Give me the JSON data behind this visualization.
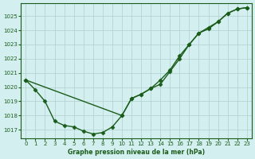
{
  "title": "Graphe pression niveau de la mer (hPa)",
  "background_color": "#d4efef",
  "grid_color": "#b0cece",
  "line_color": "#1a5c1a",
  "marker": "D",
  "marker_size": 2.5,
  "line_width": 1.0,
  "ylim": [
    1016.4,
    1025.9
  ],
  "yticks": [
    1017,
    1018,
    1019,
    1020,
    1021,
    1022,
    1023,
    1024,
    1025
  ],
  "xlim": [
    -0.5,
    23.5
  ],
  "xticks": [
    0,
    1,
    2,
    3,
    4,
    5,
    6,
    7,
    8,
    9,
    10,
    11,
    12,
    13,
    14,
    15,
    16,
    17,
    18,
    19,
    20,
    21,
    22,
    23
  ],
  "series1_x": [
    0,
    1,
    2,
    3,
    4,
    5,
    6,
    7,
    8,
    9,
    10,
    11,
    12,
    13,
    14,
    15,
    16,
    17,
    18,
    19,
    20,
    21,
    22,
    23
  ],
  "series1_y": [
    1020.5,
    1019.8,
    1019.0,
    1017.6,
    1017.3,
    1017.2,
    1016.9,
    1016.7,
    1016.8,
    1017.2,
    1018.0,
    1019.2,
    1019.5,
    1019.9,
    1020.2,
    1021.1,
    1022.0,
    1023.0,
    1023.8,
    1024.1,
    1024.6,
    1025.2,
    1025.5,
    1025.6
  ],
  "series2_x": [
    0,
    10,
    11,
    12,
    13,
    14,
    15,
    16,
    17,
    18,
    19,
    20,
    21,
    22,
    23
  ],
  "series2_y": [
    1020.5,
    1018.0,
    1019.2,
    1019.5,
    1019.9,
    1020.5,
    1021.2,
    1022.2,
    1023.0,
    1023.8,
    1024.2,
    1024.6,
    1025.2,
    1025.5,
    1025.6
  ]
}
